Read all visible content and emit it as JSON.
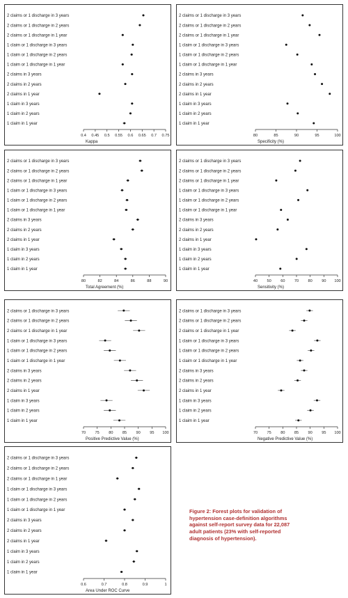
{
  "categories": [
    "2 claims or 1 discharge in 3 years",
    "2 claims or 1 discharge in 2 years",
    "2 claims or 1 discharge in 1 year",
    "1 claim or 1 discharge in 3 years",
    "1 claim or 1 discharge in 2 years",
    "1 claim or 1 discharge in 1 year",
    "2 claims in 3 years",
    "2 claims in 2 years",
    "2 claims in 1 year",
    "1 claim in 3 years",
    "1 claim in 2 years",
    "1 claim in 1 year"
  ],
  "caption": {
    "lines": [
      "Figure 2: Forest plots for validation of",
      "hypertension case-definition algorithms",
      "against self-report survey data for 22,087",
      "adult patients (23% with self-reported",
      "diagnosis of hypertension)."
    ]
  },
  "chart_data": [
    {
      "type": "scatter",
      "xlabel": "Kappa",
      "xlim": [
        0.4,
        0.75
      ],
      "ticks": [
        "0.4",
        "0.45",
        "0.5",
        "0.55",
        "0.6",
        "0.65",
        "0.7",
        "0.75"
      ],
      "values": [
        0.655,
        0.64,
        0.567,
        0.61,
        0.605,
        0.567,
        0.607,
        0.578,
        0.468,
        0.607,
        0.6,
        0.574
      ],
      "lower": [
        0.65,
        0.635,
        0.562,
        0.605,
        0.6,
        0.562,
        0.602,
        0.573,
        0.463,
        0.602,
        0.595,
        0.567
      ],
      "upper": [
        0.66,
        0.645,
        0.572,
        0.615,
        0.61,
        0.572,
        0.612,
        0.583,
        0.473,
        0.612,
        0.605,
        0.581
      ]
    },
    {
      "type": "scatter",
      "xlabel": "Specificity (%)",
      "xlim": [
        80,
        100
      ],
      "ticks": [
        "80",
        "85",
        "90",
        "95",
        "100"
      ],
      "values": [
        91.5,
        93.2,
        95.6,
        87.5,
        90.2,
        93.7,
        94.5,
        96.2,
        98.1,
        87.8,
        90.3,
        94.2
      ],
      "lower": [
        91.3,
        93.0,
        95.4,
        87.3,
        90.0,
        93.5,
        94.3,
        96.0,
        97.9,
        87.6,
        90.1,
        94.0
      ],
      "upper": [
        91.7,
        93.4,
        95.8,
        87.7,
        90.4,
        93.9,
        94.7,
        96.4,
        98.3,
        88.0,
        90.5,
        94.4
      ]
    },
    {
      "type": "scatter",
      "xlabel": "Total Agreement (%)",
      "xlim": [
        80,
        90
      ],
      "ticks": [
        "80",
        "82",
        "84",
        "86",
        "88",
        "90"
      ],
      "values": [
        86.9,
        87.1,
        85.4,
        84.7,
        85.3,
        85.2,
        86.6,
        86.0,
        83.7,
        84.6,
        85.1,
        85.1
      ],
      "lower": [
        86.7,
        86.9,
        85.2,
        84.5,
        85.1,
        85.0,
        86.4,
        85.8,
        83.5,
        84.4,
        84.9,
        84.9
      ],
      "upper": [
        87.1,
        87.3,
        85.6,
        84.9,
        85.5,
        85.4,
        86.8,
        86.2,
        83.9,
        84.8,
        85.3,
        85.3
      ]
    },
    {
      "type": "scatter",
      "xlabel": "Sensitivity (%)",
      "xlim": [
        40,
        100
      ],
      "ticks": [
        "40",
        "50",
        "60",
        "70",
        "80",
        "90",
        "100"
      ],
      "values": [
        72.6,
        69.2,
        55.2,
        78.0,
        71.3,
        58.7,
        63.6,
        56.2,
        40.5,
        77.3,
        70.1,
        58.2
      ],
      "lower": [
        72.0,
        68.6,
        54.6,
        77.4,
        70.7,
        58.1,
        63.0,
        55.6,
        40.0,
        76.7,
        69.5,
        57.6
      ],
      "upper": [
        73.2,
        69.8,
        55.8,
        78.6,
        71.9,
        59.3,
        64.2,
        56.8,
        41.0,
        77.9,
        70.7,
        58.8
      ]
    },
    {
      "type": "scatter",
      "xlabel": "Positive Predictive Value (%)",
      "xlim": [
        70,
        100
      ],
      "ticks": [
        "70",
        "75",
        "80",
        "85",
        "90",
        "95",
        "100"
      ],
      "values": [
        84.7,
        87.3,
        90.3,
        77.9,
        79.6,
        83.3,
        87.0,
        89.5,
        92.0,
        78.4,
        79.6,
        83.1
      ],
      "lower": [
        82.5,
        85.1,
        88.1,
        75.7,
        77.4,
        81.1,
        84.8,
        87.3,
        89.8,
        76.2,
        77.4,
        80.9
      ],
      "upper": [
        86.9,
        89.5,
        92.5,
        80.1,
        81.8,
        85.5,
        89.2,
        91.7,
        94.2,
        80.6,
        81.8,
        85.3
      ]
    },
    {
      "type": "scatter",
      "xlabel": "Negative Predictive Value (%)",
      "xlim": [
        70,
        100
      ],
      "ticks": [
        "70",
        "75",
        "80",
        "85",
        "90",
        "95",
        "100"
      ],
      "values": [
        89.8,
        87.8,
        83.5,
        92.6,
        90.3,
        86.3,
        87.8,
        85.4,
        79.4,
        92.5,
        90.1,
        85.7
      ],
      "lower": [
        88.6,
        86.6,
        82.3,
        91.4,
        89.1,
        85.1,
        86.6,
        84.2,
        78.2,
        91.3,
        88.9,
        84.5
      ],
      "upper": [
        91.0,
        89.0,
        84.7,
        93.8,
        91.5,
        87.5,
        89.0,
        86.6,
        80.6,
        93.7,
        91.3,
        86.9
      ]
    },
    {
      "type": "scatter",
      "xlabel": "Area Under ROC Curve",
      "xlim": [
        0.6,
        1
      ],
      "ticks": [
        "0.6",
        "0.7",
        "0.8",
        "0.9",
        "1"
      ],
      "values": [
        0.857,
        0.84,
        0.765,
        0.87,
        0.85,
        0.8,
        0.84,
        0.8,
        0.71,
        0.86,
        0.845,
        0.785
      ],
      "lower": [
        0.85,
        0.833,
        0.758,
        0.863,
        0.843,
        0.793,
        0.833,
        0.793,
        0.703,
        0.853,
        0.838,
        0.778
      ],
      "upper": [
        0.864,
        0.847,
        0.772,
        0.877,
        0.857,
        0.807,
        0.847,
        0.807,
        0.717,
        0.867,
        0.852,
        0.792
      ]
    }
  ]
}
